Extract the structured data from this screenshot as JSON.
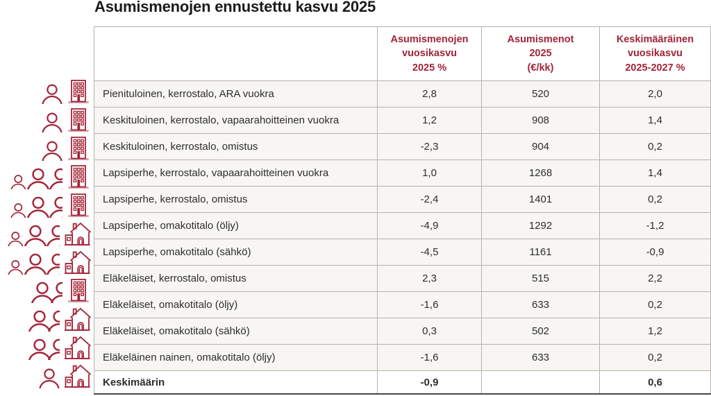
{
  "title": "Asumismenojen ennustettu kasvu 2025",
  "colors": {
    "accent_red": "#a32438",
    "title_text": "#1b1b1b",
    "body_text": "#2d2d2d",
    "row_background": "#f7f6f3",
    "grid_border": "#b4b2af",
    "bottom_border": "#454545"
  },
  "table": {
    "columns": [
      "",
      "Asumismenojen\nvuosikasvu\n2025 %",
      "Asumismenot\n2025\n(€/kk)",
      "Keskimääräinen\nvuosikasvu\n2025-2027 %"
    ],
    "rows": [
      {
        "label": "Pienituloinen, kerrostalo, ARA vuokra",
        "growth_2025": "2,8",
        "cost_2025": "520",
        "avg_growth_2025_2027": "2,0",
        "icons": {
          "people": "single-adult",
          "dwelling": "apartment-building"
        }
      },
      {
        "label": "Keskituloinen, kerrostalo, vapaarahoitteinen vuokra",
        "growth_2025": "1,2",
        "cost_2025": "908",
        "avg_growth_2025_2027": "1,4",
        "icons": {
          "people": "single-adult",
          "dwelling": "apartment-building"
        }
      },
      {
        "label": "Keskituloinen, kerrostalo, omistus",
        "growth_2025": "-2,3",
        "cost_2025": "904",
        "avg_growth_2025_2027": "0,2",
        "icons": {
          "people": "single-adult",
          "dwelling": "apartment-building"
        }
      },
      {
        "label": "Lapsiperhe, kerrostalo, vapaarahoitteinen vuokra",
        "growth_2025": "1,0",
        "cost_2025": "1268",
        "avg_growth_2025_2027": "1,4",
        "icons": {
          "people": "family-with-children",
          "dwelling": "apartment-building"
        }
      },
      {
        "label": "Lapsiperhe, kerrostalo, omistus",
        "growth_2025": "-2,4",
        "cost_2025": "1401",
        "avg_growth_2025_2027": "0,2",
        "icons": {
          "people": "family-with-children",
          "dwelling": "apartment-building"
        }
      },
      {
        "label": "Lapsiperhe, omakotitalo (öljy)",
        "growth_2025": "-4,9",
        "cost_2025": "1292",
        "avg_growth_2025_2027": "-1,2",
        "icons": {
          "people": "family-with-children",
          "dwelling": "detached-house"
        }
      },
      {
        "label": "Lapsiperhe, omakotitalo (sähkö)",
        "growth_2025": "-4,5",
        "cost_2025": "1161",
        "avg_growth_2025_2027": "-0,9",
        "icons": {
          "people": "family-with-children",
          "dwelling": "detached-house"
        }
      },
      {
        "label": "Eläkeläiset, kerrostalo, omistus",
        "growth_2025": "2,3",
        "cost_2025": "515",
        "avg_growth_2025_2027": "2,2",
        "icons": {
          "people": "couple",
          "dwelling": "apartment-building"
        }
      },
      {
        "label": "Eläkeläiset, omakotitalo (öljy)",
        "growth_2025": "-1,6",
        "cost_2025": "633",
        "avg_growth_2025_2027": "0,2",
        "icons": {
          "people": "couple",
          "dwelling": "detached-house"
        }
      },
      {
        "label": "Eläkeläiset, omakotitalo (sähkö)",
        "growth_2025": "0,3",
        "cost_2025": "502",
        "avg_growth_2025_2027": "1,2",
        "icons": {
          "people": "couple",
          "dwelling": "detached-house"
        }
      },
      {
        "label": "Eläkeläinen nainen, omakotitalo (öljy)",
        "growth_2025": "-1,6",
        "cost_2025": "633",
        "avg_growth_2025_2027": "0,2",
        "icons": {
          "people": "single-adult",
          "dwelling": "detached-house"
        }
      },
      {
        "label": "Keskimäärin",
        "growth_2025": "-0,9",
        "cost_2025": "",
        "avg_growth_2025_2027": "0,6",
        "summary": true,
        "icons": {
          "people": "none",
          "dwelling": "none"
        }
      }
    ]
  },
  "chart_data": {
    "type": "table",
    "title": "Asumismenojen ennustettu kasvu 2025",
    "columns": [
      "Asumismenojen vuosikasvu 2025 %",
      "Asumismenot 2025 (€/kk)",
      "Keskimääräinen vuosikasvu 2025-2027 %"
    ],
    "rows": [
      {
        "label": "Pienituloinen, kerrostalo, ARA vuokra",
        "vuosikasvu_2025_pct": 2.8,
        "asumismenot_2025_eur_kk": 520,
        "keskimaarainen_vuosikasvu_2025_2027_pct": 2.0
      },
      {
        "label": "Keskituloinen, kerrostalo, vapaarahoitteinen vuokra",
        "vuosikasvu_2025_pct": 1.2,
        "asumismenot_2025_eur_kk": 908,
        "keskimaarainen_vuosikasvu_2025_2027_pct": 1.4
      },
      {
        "label": "Keskituloinen, kerrostalo, omistus",
        "vuosikasvu_2025_pct": -2.3,
        "asumismenot_2025_eur_kk": 904,
        "keskimaarainen_vuosikasvu_2025_2027_pct": 0.2
      },
      {
        "label": "Lapsiperhe, kerrostalo, vapaarahoitteinen vuokra",
        "vuosikasvu_2025_pct": 1.0,
        "asumismenot_2025_eur_kk": 1268,
        "keskimaarainen_vuosikasvu_2025_2027_pct": 1.4
      },
      {
        "label": "Lapsiperhe, kerrostalo, omistus",
        "vuosikasvu_2025_pct": -2.4,
        "asumismenot_2025_eur_kk": 1401,
        "keskimaarainen_vuosikasvu_2025_2027_pct": 0.2
      },
      {
        "label": "Lapsiperhe, omakotitalo (öljy)",
        "vuosikasvu_2025_pct": -4.9,
        "asumismenot_2025_eur_kk": 1292,
        "keskimaarainen_vuosikasvu_2025_2027_pct": -1.2
      },
      {
        "label": "Lapsiperhe, omakotitalo (sähkö)",
        "vuosikasvu_2025_pct": -4.5,
        "asumismenot_2025_eur_kk": 1161,
        "keskimaarainen_vuosikasvu_2025_2027_pct": -0.9
      },
      {
        "label": "Eläkeläiset, kerrostalo, omistus",
        "vuosikasvu_2025_pct": 2.3,
        "asumismenot_2025_eur_kk": 515,
        "keskimaarainen_vuosikasvu_2025_2027_pct": 2.2
      },
      {
        "label": "Eläkeläiset, omakotitalo (öljy)",
        "vuosikasvu_2025_pct": -1.6,
        "asumismenot_2025_eur_kk": 633,
        "keskimaarainen_vuosikasvu_2025_2027_pct": 0.2
      },
      {
        "label": "Eläkeläiset, omakotitalo (sähkö)",
        "vuosikasvu_2025_pct": 0.3,
        "asumismenot_2025_eur_kk": 502,
        "keskimaarainen_vuosikasvu_2025_2027_pct": 1.2
      },
      {
        "label": "Eläkeläinen nainen, omakotitalo (öljy)",
        "vuosikasvu_2025_pct": -1.6,
        "asumismenot_2025_eur_kk": 633,
        "keskimaarainen_vuosikasvu_2025_2027_pct": 0.2
      },
      {
        "label": "Keskimäärin",
        "vuosikasvu_2025_pct": -0.9,
        "asumismenot_2025_eur_kk": null,
        "keskimaarainen_vuosikasvu_2025_2027_pct": 0.6
      }
    ]
  }
}
